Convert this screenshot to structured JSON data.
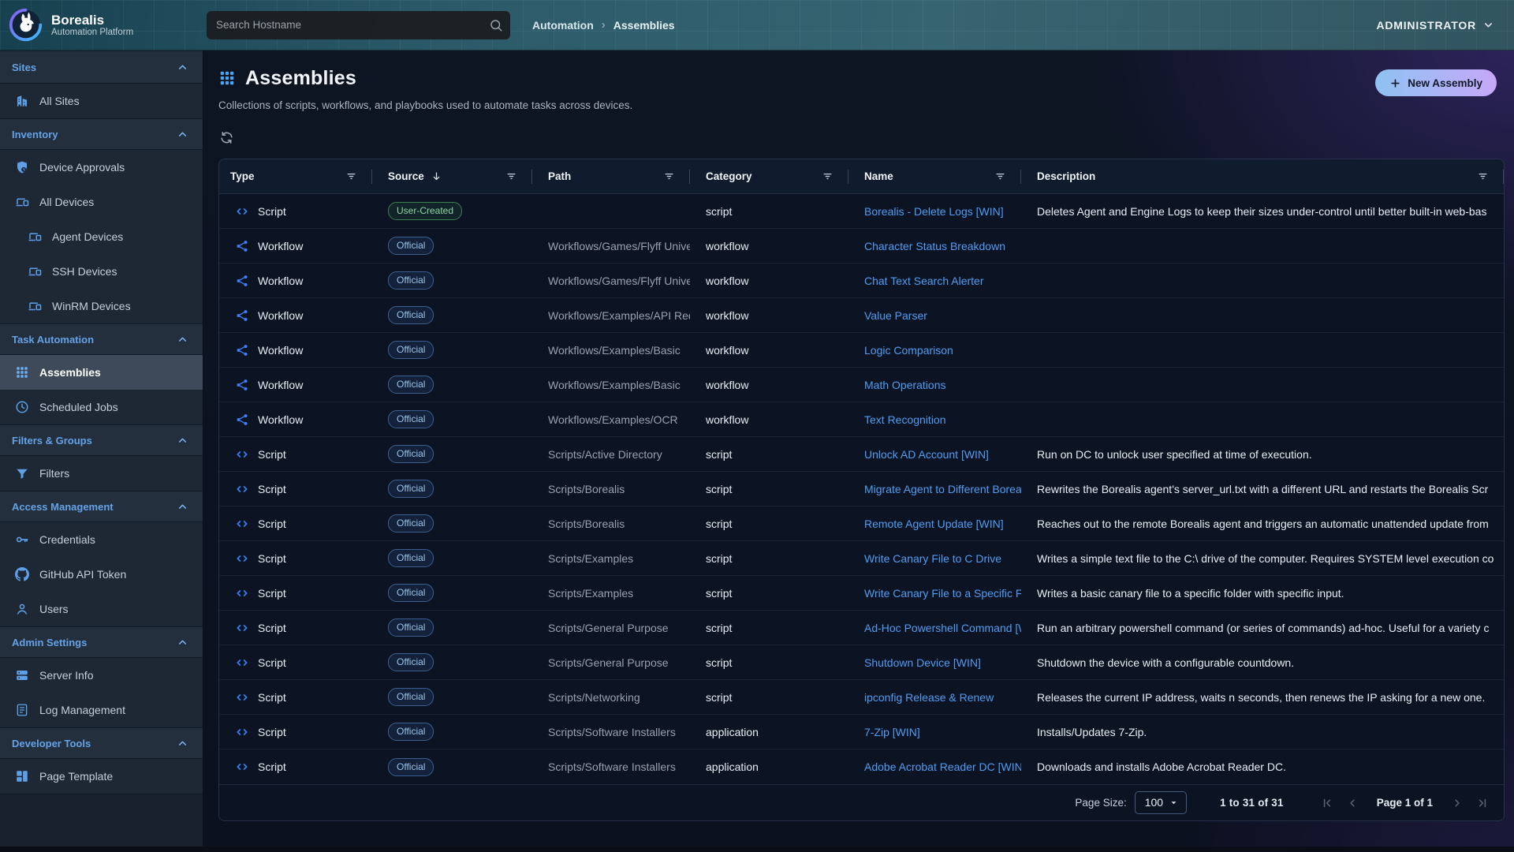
{
  "header": {
    "logo_title": "Borealis",
    "logo_subtitle": "Automation Platform",
    "search_placeholder": "Search Hostname",
    "breadcrumbs": [
      "Automation",
      "Assemblies"
    ],
    "breadcrumb_separator": "›",
    "user_menu": "ADMINISTRATOR"
  },
  "sidebar": {
    "sections": [
      {
        "label": "Sites",
        "items": [
          {
            "label": "All Sites",
            "icon": "building-icon"
          }
        ]
      },
      {
        "label": "Inventory",
        "items": [
          {
            "label": "Device Approvals",
            "icon": "shield-icon"
          },
          {
            "label": "All Devices",
            "icon": "devices-icon"
          },
          {
            "label": "Agent Devices",
            "icon": "devices-icon",
            "sub": true
          },
          {
            "label": "SSH Devices",
            "icon": "devices-icon",
            "sub": true
          },
          {
            "label": "WinRM Devices",
            "icon": "devices-icon",
            "sub": true
          }
        ]
      },
      {
        "label": "Task Automation",
        "items": [
          {
            "label": "Assemblies",
            "icon": "grid-icon",
            "active": true
          },
          {
            "label": "Scheduled Jobs",
            "icon": "clock-icon"
          }
        ]
      },
      {
        "label": "Filters & Groups",
        "items": [
          {
            "label": "Filters",
            "icon": "filter-funnel-icon"
          }
        ]
      },
      {
        "label": "Access Management",
        "items": [
          {
            "label": "Credentials",
            "icon": "key-icon"
          },
          {
            "label": "GitHub API Token",
            "icon": "github-icon"
          },
          {
            "label": "Users",
            "icon": "user-icon"
          }
        ]
      },
      {
        "label": "Admin Settings",
        "items": [
          {
            "label": "Server Info",
            "icon": "server-icon"
          },
          {
            "label": "Log Management",
            "icon": "log-icon"
          }
        ]
      },
      {
        "label": "Developer Tools",
        "items": [
          {
            "label": "Page Template",
            "icon": "layout-icon"
          }
        ]
      }
    ]
  },
  "page": {
    "title": "Assemblies",
    "description": "Collections of scripts, workflows, and playbooks used to automate tasks across devices.",
    "new_button": "New Assembly"
  },
  "table": {
    "columns": [
      {
        "label": "Type",
        "filter": true
      },
      {
        "label": "Source",
        "filter": true,
        "sorted": "desc"
      },
      {
        "label": "Path",
        "filter": true
      },
      {
        "label": "Category",
        "filter": true
      },
      {
        "label": "Name",
        "filter": true
      },
      {
        "label": "Description",
        "filter": true
      }
    ],
    "rows": [
      {
        "type": "Script",
        "type_icon": "code-icon",
        "source": "User-Created",
        "source_variant": "user-created",
        "path": "",
        "category": "script",
        "name": "Borealis - Delete Logs [WIN]",
        "description": "Deletes Agent and Engine Logs to keep their sizes under-control until better built-in web-bas"
      },
      {
        "type": "Workflow",
        "type_icon": "workflow-icon",
        "source": "Official",
        "source_variant": "official",
        "path": "Workflows/Games/Flyff Univer",
        "category": "workflow",
        "name": "Character Status Breakdown",
        "description": ""
      },
      {
        "type": "Workflow",
        "type_icon": "workflow-icon",
        "source": "Official",
        "source_variant": "official",
        "path": "Workflows/Games/Flyff Univer",
        "category": "workflow",
        "name": "Chat Text Search Alerter",
        "description": ""
      },
      {
        "type": "Workflow",
        "type_icon": "workflow-icon",
        "source": "Official",
        "source_variant": "official",
        "path": "Workflows/Examples/API Requ",
        "category": "workflow",
        "name": "Value Parser",
        "description": ""
      },
      {
        "type": "Workflow",
        "type_icon": "workflow-icon",
        "source": "Official",
        "source_variant": "official",
        "path": "Workflows/Examples/Basic",
        "category": "workflow",
        "name": "Logic Comparison",
        "description": ""
      },
      {
        "type": "Workflow",
        "type_icon": "workflow-icon",
        "source": "Official",
        "source_variant": "official",
        "path": "Workflows/Examples/Basic",
        "category": "workflow",
        "name": "Math Operations",
        "description": ""
      },
      {
        "type": "Workflow",
        "type_icon": "workflow-icon",
        "source": "Official",
        "source_variant": "official",
        "path": "Workflows/Examples/OCR",
        "category": "workflow",
        "name": "Text Recognition",
        "description": ""
      },
      {
        "type": "Script",
        "type_icon": "code-icon",
        "source": "Official",
        "source_variant": "official",
        "path": "Scripts/Active Directory",
        "category": "script",
        "name": "Unlock AD Account [WIN]",
        "description": "Run on DC to unlock user specified at time of execution."
      },
      {
        "type": "Script",
        "type_icon": "code-icon",
        "source": "Official",
        "source_variant": "official",
        "path": "Scripts/Borealis",
        "category": "script",
        "name": "Migrate Agent to Different Borea",
        "description": "Rewrites the Borealis agent's server_url.txt with a different URL and restarts the Borealis Scr"
      },
      {
        "type": "Script",
        "type_icon": "code-icon",
        "source": "Official",
        "source_variant": "official",
        "path": "Scripts/Borealis",
        "category": "script",
        "name": "Remote Agent Update [WIN]",
        "description": "Reaches out to the remote Borealis agent and triggers an automatic unattended update from"
      },
      {
        "type": "Script",
        "type_icon": "code-icon",
        "source": "Official",
        "source_variant": "official",
        "path": "Scripts/Examples",
        "category": "script",
        "name": "Write Canary File to C Drive",
        "description": "Writes a simple text file to the C:\\ drive of the computer. Requires SYSTEM level execution co"
      },
      {
        "type": "Script",
        "type_icon": "code-icon",
        "source": "Official",
        "source_variant": "official",
        "path": "Scripts/Examples",
        "category": "script",
        "name": "Write Canary File to a Specific F",
        "description": "Writes a basic canary file to a specific folder with specific input."
      },
      {
        "type": "Script",
        "type_icon": "code-icon",
        "source": "Official",
        "source_variant": "official",
        "path": "Scripts/General Purpose",
        "category": "script",
        "name": "Ad-Hoc Powershell Command [W",
        "description": "Run an arbitrary powershell command (or series of commands) ad-hoc. Useful for a variety c"
      },
      {
        "type": "Script",
        "type_icon": "code-icon",
        "source": "Official",
        "source_variant": "official",
        "path": "Scripts/General Purpose",
        "category": "script",
        "name": "Shutdown Device [WIN]",
        "description": "Shutdown the device with a configurable countdown."
      },
      {
        "type": "Script",
        "type_icon": "code-icon",
        "source": "Official",
        "source_variant": "official",
        "path": "Scripts/Networking",
        "category": "script",
        "name": "ipconfig Release & Renew",
        "description": "Releases the current IP address, waits n seconds, then renews the IP asking for a new one."
      },
      {
        "type": "Script",
        "type_icon": "code-icon",
        "source": "Official",
        "source_variant": "official",
        "path": "Scripts/Software Installers",
        "category": "application",
        "name": "7-Zip [WIN]",
        "description": "Installs/Updates 7-Zip."
      },
      {
        "type": "Script",
        "type_icon": "code-icon",
        "source": "Official",
        "source_variant": "official",
        "path": "Scripts/Software Installers",
        "category": "application",
        "name": "Adobe Acrobat Reader DC [WIN",
        "description": "Downloads and installs Adobe Acrobat Reader DC."
      }
    ]
  },
  "pagination": {
    "page_size_label": "Page Size:",
    "page_size": "100",
    "range_text": "1 to 31 of 31",
    "page_text": "Page 1 of 1"
  },
  "colors": {
    "accent_blue": "#4f9df1",
    "sidebar_accent": "#5e9fe6",
    "badge_official_text": "#9cc3ea",
    "badge_user_created_text": "#8fd6a3",
    "button_gradient_start": "#8ec2f2",
    "button_gradient_end": "#c7a8f9"
  }
}
